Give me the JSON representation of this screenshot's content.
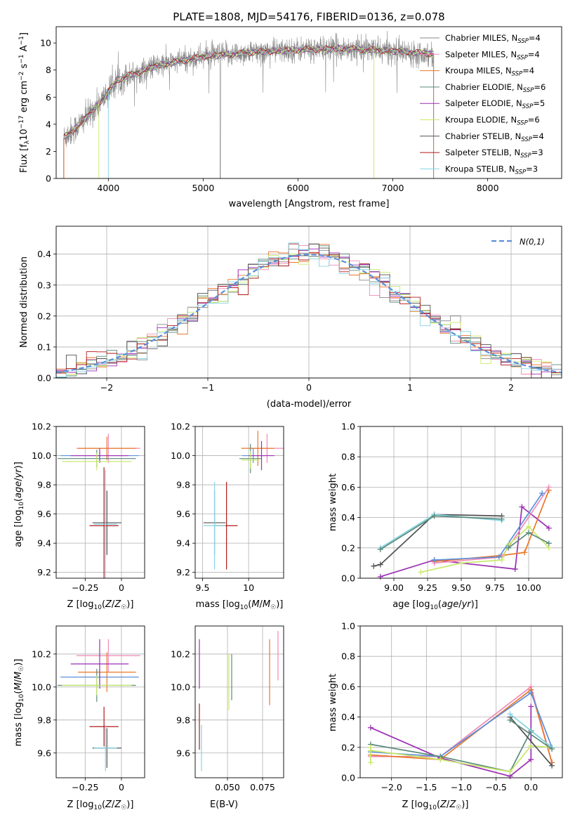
{
  "colors": {
    "chabrier_miles": "#888888",
    "salpeter_miles": "#f08ab8",
    "kroupa_miles": "#e8772a",
    "chabrier_elodie": "#5b8a7a",
    "salpeter_elodie": "#9c2fb4",
    "kroupa_elodie": "#c8e86a",
    "chabrier_stelib": "#505050",
    "salpeter_stelib": "#b01a1a",
    "kroupa_stelib": "#86d4e4",
    "normal": "#5b8fd9"
  },
  "legend_top": [
    {
      "label": "Chabrier MILES, N",
      "sub": "SSP",
      "eq": "=4",
      "color": "#888888"
    },
    {
      "label": "Salpeter MILES, N",
      "sub": "SSP",
      "eq": "=4",
      "color": "#f08ab8"
    },
    {
      "label": "Kroupa MILES, N",
      "sub": "SSP",
      "eq": "=4",
      "color": "#e8772a"
    },
    {
      "label": "Chabrier ELODIE, N",
      "sub": "SSP",
      "eq": "=6",
      "color": "#5b8a7a"
    },
    {
      "label": "Salpeter ELODIE, N",
      "sub": "SSP",
      "eq": "=5",
      "color": "#9c2fb4"
    },
    {
      "label": "Kroupa ELODIE, N",
      "sub": "SSP",
      "eq": "=6",
      "color": "#c8e86a"
    },
    {
      "label": "Chabrier STELIB, N",
      "sub": "SSP",
      "eq": "=4",
      "color": "#505050"
    },
    {
      "label": "Salpeter STELIB, N",
      "sub": "SSP",
      "eq": "=3",
      "color": "#b01a1a"
    },
    {
      "label": "Kroupa STELIB, N",
      "sub": "SSP",
      "eq": "=3",
      "color": "#86d4e4"
    }
  ],
  "chart_data": [
    {
      "id": "spectrum",
      "type": "line",
      "title": "PLATE=1808, MJD=54176, FIBERID=0136, z=0.078",
      "xlabel": "wavelength [Angstrom, rest frame]",
      "ylabel": "Flux [fλ10⁻¹⁷ erg cm⁻² s⁻¹ A⁻¹]",
      "xlim": [
        3450,
        8780
      ],
      "ylim": [
        0,
        11.2
      ],
      "xticks": [
        4000,
        5000,
        6000,
        7000,
        8000
      ],
      "yticks": [
        0,
        2,
        4,
        6,
        8,
        10
      ],
      "x_range": [
        3530,
        7430
      ],
      "continuum": [
        [
          3530,
          3.0
        ],
        [
          3700,
          4.0
        ],
        [
          3900,
          5.5
        ],
        [
          4100,
          7.3
        ],
        [
          4500,
          8.3
        ],
        [
          5000,
          9.0
        ],
        [
          5500,
          9.3
        ],
        [
          6000,
          9.5
        ],
        [
          6500,
          9.6
        ],
        [
          7000,
          9.4
        ],
        [
          7430,
          9.2
        ]
      ]
    },
    {
      "id": "residuals",
      "type": "step",
      "xlabel": "(data-model)/error",
      "ylabel": "Normed distribution",
      "xlim": [
        -2.5,
        2.5
      ],
      "ylim": [
        0,
        0.49
      ],
      "xticks": [
        -2,
        -1,
        0,
        1,
        2
      ],
      "yticks": [
        0.0,
        0.1,
        0.2,
        0.3,
        0.4
      ],
      "legend": "N(0,1)",
      "bin_width": 0.1
    },
    {
      "id": "age_vs_Z",
      "type": "errorbar",
      "xlabel": "Z [log10(Z/Z☉)]",
      "ylabel": "age [log10(age/yr)]",
      "xlim": [
        -0.45,
        0.16
      ],
      "ylim": [
        9.16,
        10.2
      ],
      "xticks": [
        -0.25,
        0.0
      ],
      "yticks": [
        9.2,
        9.4,
        9.6,
        9.8,
        10.0,
        10.2
      ],
      "points": [
        {
          "x": -0.09,
          "y": 10.05,
          "xerr": 0.22,
          "yerr": 0.1,
          "color": "#f08ab8"
        },
        {
          "x": -0.1,
          "y": 10.05,
          "xerr": 0.2,
          "yerr": 0.08,
          "color": "#e8772a"
        },
        {
          "x": -0.15,
          "y": 10.0,
          "xerr": 0.27,
          "yerr": 0.03,
          "color": "#5b8fd9"
        },
        {
          "x": -0.15,
          "y": 10.0,
          "xerr": 0.2,
          "yerr": 0.05,
          "color": "#9c2fb4"
        },
        {
          "x": -0.17,
          "y": 9.98,
          "xerr": 0.27,
          "yerr": 0.06,
          "color": "#5b8a7a"
        },
        {
          "x": -0.17,
          "y": 9.96,
          "xerr": 0.24,
          "yerr": 0.06,
          "color": "#c8e86a"
        },
        {
          "x": -0.1,
          "y": 9.54,
          "xerr": 0.1,
          "yerr": 0.22,
          "color": "#505050"
        },
        {
          "x": -0.12,
          "y": 9.52,
          "xerr": 0.1,
          "yerr": 0.4,
          "color": "#b01a1a"
        },
        {
          "x": -0.11,
          "y": 9.53,
          "xerr": 0.08,
          "yerr": 0.37,
          "color": "#86d4e4"
        }
      ]
    },
    {
      "id": "age_vs_mass",
      "type": "errorbar",
      "xlabel": "mass [log10(M/M☉)]",
      "ylabel": "",
      "xlim": [
        9.42,
        10.38
      ],
      "ylim": [
        9.16,
        10.2
      ],
      "xticks": [
        9.5,
        10.0
      ],
      "yticks": [
        9.2,
        9.4,
        9.6,
        9.8,
        10.0,
        10.2
      ],
      "points": [
        {
          "x": 10.2,
          "y": 10.05,
          "xerr": 0.18,
          "yerr": 0.1,
          "color": "#f08ab8"
        },
        {
          "x": 10.1,
          "y": 10.05,
          "xerr": 0.18,
          "yerr": 0.12,
          "color": "#e8772a"
        },
        {
          "x": 10.05,
          "y": 10.0,
          "xerr": 0.12,
          "yerr": 0.05,
          "color": "#5b8fd9"
        },
        {
          "x": 10.14,
          "y": 10.0,
          "xerr": 0.14,
          "yerr": 0.1,
          "color": "#9c2fb4"
        },
        {
          "x": 10.02,
          "y": 9.98,
          "xerr": 0.12,
          "yerr": 0.1,
          "color": "#5b8a7a"
        },
        {
          "x": 10.02,
          "y": 9.97,
          "xerr": 0.1,
          "yerr": 0.06,
          "color": "#c8e86a"
        },
        {
          "x": 9.63,
          "y": 9.54,
          "xerr": 0.12,
          "yerr": 0.22,
          "color": "#505050"
        },
        {
          "x": 9.76,
          "y": 9.52,
          "xerr": 0.12,
          "yerr": 0.3,
          "color": "#b01a1a"
        },
        {
          "x": 9.63,
          "y": 9.52,
          "xerr": 0.12,
          "yerr": 0.3,
          "color": "#86d4e4"
        }
      ]
    },
    {
      "id": "weight_vs_age",
      "type": "line",
      "xlabel": "age [log10(age/yr)]",
      "ylabel": "mass weight",
      "xlim": [
        8.75,
        10.25
      ],
      "ylim": [
        0,
        1.0
      ],
      "xticks": [
        9.0,
        9.25,
        9.5,
        9.75,
        10.0
      ],
      "xticklabels": [
        "9.00",
        "9.25",
        "9.50",
        "9.75",
        "10.00"
      ],
      "yticks": [
        0.0,
        0.2,
        0.4,
        0.6,
        0.8,
        1.0
      ],
      "series": [
        {
          "color": "#505050",
          "x": [
            8.85,
            8.9,
            9.3,
            9.8
          ],
          "y": [
            0.08,
            0.09,
            0.42,
            0.41
          ]
        },
        {
          "color": "#86d4e4",
          "x": [
            8.9,
            9.3,
            9.8
          ],
          "y": [
            0.2,
            0.42,
            0.38
          ]
        },
        {
          "color": "#5b8a7a",
          "x": [
            8.9,
            9.3,
            9.8
          ],
          "y": [
            0.19,
            0.41,
            0.39
          ]
        },
        {
          "color": "#9c2fb4",
          "x": [
            8.9,
            9.3,
            9.9,
            9.95,
            10.15
          ],
          "y": [
            0.01,
            0.12,
            0.06,
            0.47,
            0.33
          ]
        },
        {
          "color": "#e8772a",
          "x": [
            9.3,
            9.8,
            9.97,
            10.15
          ],
          "y": [
            0.11,
            0.15,
            0.17,
            0.58
          ]
        },
        {
          "color": "#f08ab8",
          "x": [
            9.3,
            9.8,
            10.15
          ],
          "y": [
            0.1,
            0.14,
            0.6
          ]
        },
        {
          "color": "#5b8fd9",
          "x": [
            9.3,
            9.78,
            10.1
          ],
          "y": [
            0.12,
            0.14,
            0.56
          ]
        },
        {
          "color": "#c8e86a",
          "x": [
            9.2,
            9.5,
            9.8,
            9.85,
            10.0,
            10.15
          ],
          "y": [
            0.04,
            0.1,
            0.12,
            0.22,
            0.34,
            0.2
          ]
        },
        {
          "color": "#5b8a7a",
          "x": [
            9.85,
            10.0,
            10.15
          ],
          "y": [
            0.2,
            0.3,
            0.23
          ]
        }
      ]
    },
    {
      "id": "mass_vs_Z",
      "type": "errorbar",
      "xlabel": "Z [log10(Z/Z☉)]",
      "ylabel": "mass [log10(M/M☉)]",
      "xlim": [
        -0.45,
        0.16
      ],
      "ylim": [
        9.45,
        10.37
      ],
      "xticks": [
        -0.25,
        0.0
      ],
      "yticks": [
        9.6,
        9.8,
        10.0,
        10.2
      ],
      "points": [
        {
          "x": -0.09,
          "y": 10.19,
          "xerr": 0.22,
          "yerr": 0.1,
          "color": "#f08ab8"
        },
        {
          "x": -0.1,
          "y": 10.09,
          "xerr": 0.2,
          "yerr": 0.12,
          "color": "#e8772a"
        },
        {
          "x": -0.15,
          "y": 10.06,
          "xerr": 0.27,
          "yerr": 0.05,
          "color": "#5b8fd9"
        },
        {
          "x": -0.15,
          "y": 10.14,
          "xerr": 0.2,
          "yerr": 0.15,
          "color": "#9c2fb4"
        },
        {
          "x": -0.17,
          "y": 10.01,
          "xerr": 0.27,
          "yerr": 0.1,
          "color": "#5b8a7a"
        },
        {
          "x": -0.17,
          "y": 10.01,
          "xerr": 0.24,
          "yerr": 0.06,
          "color": "#c8e86a"
        },
        {
          "x": -0.1,
          "y": 9.63,
          "xerr": 0.1,
          "yerr": 0.12,
          "color": "#505050"
        },
        {
          "x": -0.12,
          "y": 9.76,
          "xerr": 0.1,
          "yerr": 0.12,
          "color": "#b01a1a"
        },
        {
          "x": -0.11,
          "y": 9.63,
          "xerr": 0.08,
          "yerr": 0.14,
          "color": "#86d4e4"
        }
      ]
    },
    {
      "id": "mass_vs_EBV",
      "type": "errorbar",
      "xlabel": "E(B-V)",
      "ylabel": "",
      "xlim": [
        0.027,
        0.09
      ],
      "ylim": [
        9.45,
        10.37
      ],
      "xticks": [
        0.05,
        0.075
      ],
      "xticklabels": [
        "0.050",
        "0.075"
      ],
      "yticks": [
        9.6,
        9.8,
        10.0,
        10.2
      ],
      "points": [
        {
          "x": 0.086,
          "y": 10.19,
          "xerr": 0,
          "yerr": 0.15,
          "color": "#f08ab8"
        },
        {
          "x": 0.08,
          "y": 10.09,
          "xerr": 0,
          "yerr": 0.2,
          "color": "#e8772a"
        },
        {
          "x": 0.053,
          "y": 10.06,
          "xerr": 0,
          "yerr": 0.14,
          "color": "#5b8a7a"
        },
        {
          "x": 0.051,
          "y": 10.03,
          "xerr": 0,
          "yerr": 0.17,
          "color": "#c8e86a"
        },
        {
          "x": 0.03,
          "y": 10.14,
          "xerr": 0,
          "yerr": 0.15,
          "color": "#9c2fb4"
        },
        {
          "x": 0.03,
          "y": 9.76,
          "xerr": 0,
          "yerr": 0.14,
          "color": "#b01a1a"
        },
        {
          "x": 0.0315,
          "y": 9.63,
          "xerr": 0,
          "yerr": 0.14,
          "color": "#86d4e4"
        }
      ]
    },
    {
      "id": "weight_vs_Z",
      "type": "line",
      "xlabel": "Z [log10(Z/Z☉)]",
      "ylabel": "mass weight",
      "xlim": [
        -2.45,
        0.45
      ],
      "ylim": [
        0,
        1.0
      ],
      "xticks": [
        -2.0,
        -1.5,
        -1.0,
        -0.5,
        0.0
      ],
      "xticklabels": [
        "−2.0",
        "−1.5",
        "−1.0",
        "−0.5",
        "0.0"
      ],
      "yticks": [
        0.0,
        0.2,
        0.4,
        0.6,
        0.8,
        1.0
      ],
      "series": [
        {
          "color": "#9c2fb4",
          "x": [
            -2.3,
            -1.3,
            -0.3,
            0.0,
            0.0,
            0.0
          ],
          "y": [
            0.33,
            0.13,
            0.01,
            0.12,
            0.47,
            0.3
          ]
        },
        {
          "color": "#f08ab8",
          "x": [
            -2.3,
            -1.3,
            0.0,
            0.3
          ],
          "y": [
            0.14,
            0.14,
            0.6,
            0.1
          ]
        },
        {
          "color": "#e8772a",
          "x": [
            -2.3,
            -1.3,
            0.0,
            0.3
          ],
          "y": [
            0.15,
            0.12,
            0.58,
            0.1
          ]
        },
        {
          "color": "#5b8fd9",
          "x": [
            -2.3,
            -1.3,
            0.0,
            0.3
          ],
          "y": [
            0.17,
            0.14,
            0.56,
            0.2
          ]
        },
        {
          "color": "#5b8a7a",
          "x": [
            -2.3,
            -1.3,
            -0.3,
            0.0,
            0.3
          ],
          "y": [
            0.22,
            0.14,
            0.04,
            0.31,
            0.2
          ]
        },
        {
          "color": "#c8e86a",
          "x": [
            -2.3,
            -1.3,
            -0.3,
            0.0,
            0.3
          ],
          "y": [
            0.18,
            0.12,
            0.04,
            0.21,
            0.2
          ]
        },
        {
          "color": "#c8e86a",
          "x": [
            -2.3,
            -2.3
          ],
          "y": [
            0.1,
            0.2
          ]
        },
        {
          "color": "#505050",
          "x": [
            -0.3,
            0.3
          ],
          "y": [
            0.4,
            0.08
          ]
        },
        {
          "color": "#86d4e4",
          "x": [
            -0.3,
            0.3
          ],
          "y": [
            0.42,
            0.2
          ]
        },
        {
          "color": "#5b8a7a",
          "x": [
            -0.3,
            0.3
          ],
          "y": [
            0.38,
            0.19
          ]
        }
      ]
    }
  ]
}
